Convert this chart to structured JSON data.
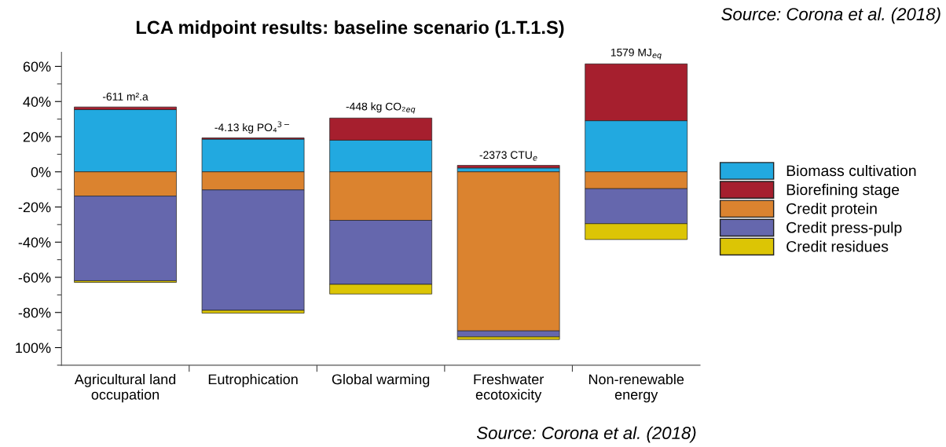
{
  "chart_data": {
    "type": "bar",
    "stacked": true,
    "title": "LCA midpoint results: baseline scenario (1.T.1.S)",
    "categories": [
      "Agricultural land\noccupation",
      "Eutrophication",
      "Global warming",
      "Freshwater\necotoxicity",
      "Non-renewable\nenergy"
    ],
    "series": [
      {
        "name": "Biomass cultivation",
        "color": "#22a9e0",
        "values": [
          35.4,
          18.6,
          18.0,
          2.2,
          29.1
        ]
      },
      {
        "name": "Biorefining stage",
        "color": "#a61f2e",
        "values": [
          1.5,
          0.7,
          12.6,
          1.5,
          32.3
        ]
      },
      {
        "name": "Credit protein",
        "color": "#db832f",
        "values": [
          -13.8,
          -10.3,
          -27.6,
          -90.5,
          -9.6
        ]
      },
      {
        "name": "Credit press-pulp",
        "color": "#6567ad",
        "values": [
          -48.2,
          -68.5,
          -36.4,
          -3.4,
          -19.9
        ]
      },
      {
        "name": "Credit residues",
        "color": "#dcc505",
        "values": [
          -0.9,
          -1.6,
          -5.5,
          -1.5,
          -9.0
        ]
      }
    ],
    "ylim": [
      -110,
      68
    ],
    "yticks": [
      {
        "value": 60,
        "label": "60%"
      },
      {
        "value": 40,
        "label": "40%"
      },
      {
        "value": 20,
        "label": "20%"
      },
      {
        "value": 0,
        "label": "0%"
      },
      {
        "value": -20,
        "label": "-20%"
      },
      {
        "value": -40,
        "label": "-40%"
      },
      {
        "value": -60,
        "label": "-60%"
      },
      {
        "value": -80,
        "label": "-80%"
      },
      {
        "value": -100,
        "label": "100%"
      }
    ],
    "grid": false,
    "legend": "right",
    "annotations": [
      {
        "text": "-611 m².a",
        "x": "Agricultural land\noccupation",
        "y": 36.9
      },
      {
        "text": "-4.13 kg PO₄$^{3−}$",
        "x": "Eutrophication",
        "y": 19.3
      },
      {
        "text": "-448 kg CO₂$_{eq}$",
        "x": "Global warming",
        "y": 30.6
      },
      {
        "text": "-2373 CTU$_{e}$",
        "x": "Freshwater\necotoxicity",
        "y": 3.7
      },
      {
        "text": "1579 MJ$_{eq}$",
        "x": "Non-renewable\nenergy",
        "y": 61.4
      },
      "Source: Corona et al. (2018)",
      "Source: Corona et al. (2018)"
    ]
  }
}
